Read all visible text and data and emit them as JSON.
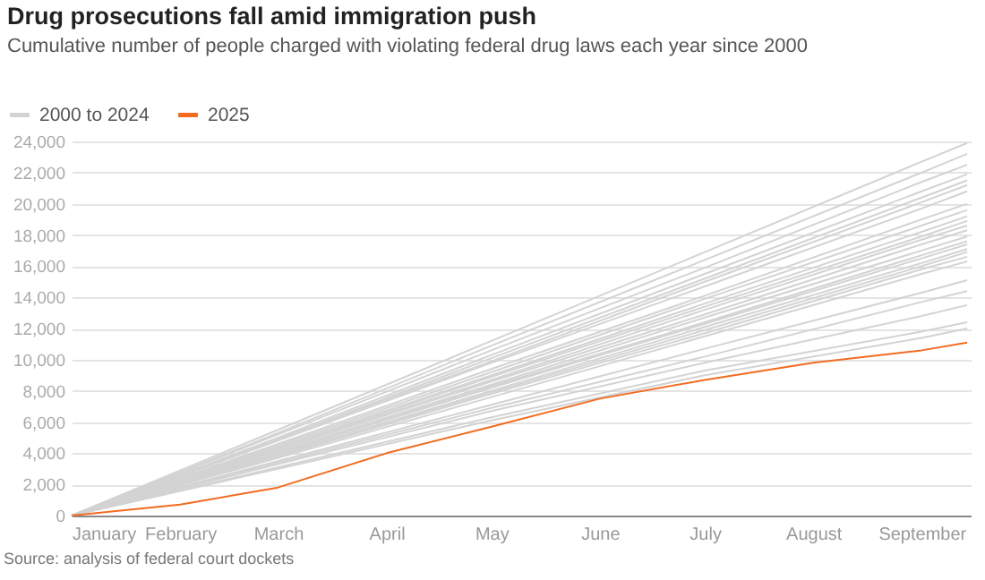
{
  "chart_data": {
    "type": "line",
    "title": "Drug prosecutions fall amid immigration push",
    "subtitle": "Cumulative number of people charged with violating federal drug laws each year since 2000",
    "annotations": [
      "Source: analysis of federal court dockets"
    ],
    "x": [
      "--01-01",
      "--03-01",
      "--05-01",
      "--07-01",
      "--09-01",
      "--09-14"
    ],
    "xlim": [
      "--01-01",
      "--09-15"
    ],
    "xticks": [
      {
        "value": "--01-01",
        "label": "January"
      },
      {
        "value": "--02-01",
        "label": "February"
      },
      {
        "value": "--03-01",
        "label": "March"
      },
      {
        "value": "--04-01",
        "label": "April"
      },
      {
        "value": "--05-01",
        "label": "May"
      },
      {
        "value": "--06-01",
        "label": "June"
      },
      {
        "value": "--07-01",
        "label": "July"
      },
      {
        "value": "--08-01",
        "label": "August"
      },
      {
        "value": "--09-01",
        "label": "September"
      }
    ],
    "ylim": [
      0,
      24000
    ],
    "yticks": [
      0,
      {
        "value": 2000,
        "label": "2,000"
      },
      {
        "value": 4000,
        "label": "4,000"
      },
      {
        "value": 6000,
        "label": "6,000"
      },
      {
        "value": 8000,
        "label": "8,000"
      },
      {
        "value": 10000,
        "label": "10,000"
      },
      {
        "value": 12000,
        "label": "12,000"
      },
      {
        "value": 14000,
        "label": "14,000"
      },
      {
        "value": 16000,
        "label": "16,000"
      },
      {
        "value": 18000,
        "label": "18,000"
      },
      {
        "value": 20000,
        "label": "20,000"
      },
      {
        "value": 22000,
        "label": "22,000"
      },
      {
        "value": 24000,
        "label": "24,000"
      }
    ],
    "grid": "y",
    "legend": "top left",
    "marker": "none",
    "line_style": "solid",
    "series": [
      {
        "name": "2000 to 2024",
        "color": "#d3d3d3",
        "values": [
          0,
          5500,
          11200,
          16900,
          22700,
          23900
        ]
      },
      {
        "color": "#d3d3d3",
        "values": [
          0,
          5300,
          10900,
          16400,
          22000,
          23200
        ]
      },
      {
        "color": "#d3d3d3",
        "values": [
          0,
          5200,
          10600,
          15900,
          21400,
          22500
        ]
      },
      {
        "color": "#d3d3d3",
        "values": [
          0,
          5000,
          10300,
          15500,
          20800,
          21900
        ]
      },
      {
        "color": "#d3d3d3",
        "values": [
          0,
          4900,
          10100,
          15200,
          20400,
          21500
        ]
      },
      {
        "color": "#d3d3d3",
        "values": [
          0,
          4900,
          9900,
          15000,
          20100,
          21200
        ]
      },
      {
        "color": "#d3d3d3",
        "values": [
          0,
          4800,
          9800,
          14700,
          19700,
          20800
        ]
      },
      {
        "color": "#d3d3d3",
        "values": [
          0,
          4600,
          9400,
          14100,
          19000,
          20000
        ]
      },
      {
        "color": "#d3d3d3",
        "values": [
          0,
          4500,
          9200,
          13900,
          18600,
          19600
        ]
      },
      {
        "color": "#d3d3d3",
        "values": [
          0,
          4400,
          9000,
          13600,
          18200,
          19200
        ]
      },
      {
        "color": "#d3d3d3",
        "values": [
          0,
          4300,
          8900,
          13400,
          17900,
          18900
        ]
      },
      {
        "color": "#d3d3d3",
        "values": [
          0,
          4300,
          8700,
          13200,
          17700,
          18600
        ]
      },
      {
        "color": "#d3d3d3",
        "values": [
          0,
          4200,
          8600,
          12900,
          17400,
          18300
        ]
      },
      {
        "color": "#d3d3d3",
        "values": [
          0,
          4100,
          8400,
          12700,
          17000,
          17900
        ]
      },
      {
        "color": "#d3d3d3",
        "values": [
          0,
          4000,
          8300,
          12400,
          16700,
          17600
        ]
      },
      {
        "color": "#d3d3d3",
        "values": [
          0,
          4000,
          8200,
          12300,
          16500,
          17400
        ]
      },
      {
        "color": "#d3d3d3",
        "values": [
          0,
          3900,
          8000,
          12100,
          16200,
          17100
        ]
      },
      {
        "color": "#d3d3d3",
        "values": [
          0,
          3900,
          7900,
          11900,
          16000,
          16900
        ]
      },
      {
        "color": "#d3d3d3",
        "values": [
          0,
          3800,
          7800,
          11700,
          15800,
          16600
        ]
      },
      {
        "color": "#d3d3d3",
        "values": [
          0,
          3700,
          7600,
          11500,
          15500,
          16300
        ]
      },
      {
        "color": "#d3d3d3",
        "values": [
          0,
          3500,
          7100,
          10700,
          14300,
          15100
        ]
      },
      {
        "color": "#d3d3d3",
        "values": [
          0,
          3400,
          6900,
          10200,
          13700,
          14400
        ]
      },
      {
        "color": "#d3d3d3",
        "values": [
          0,
          3300,
          6700,
          9800,
          12800,
          13500
        ]
      },
      {
        "color": "#d3d3d3",
        "values": [
          0,
          3100,
          6300,
          9300,
          11800,
          12400
        ]
      },
      {
        "color": "#d3d3d3",
        "values": [
          0,
          3000,
          6100,
          9000,
          11400,
          12000
        ]
      },
      {
        "name": "2025",
        "color": "#f26b21",
        "x": [
          "--01-01",
          "--02-01",
          "--03-01",
          "--04-01",
          "--05-01",
          "--06-01",
          "--07-01",
          "--08-01",
          "--09-01",
          "--09-14"
        ],
        "values": [
          0,
          700,
          1800,
          4000,
          5700,
          7500,
          8700,
          9800,
          10600,
          11100
        ]
      }
    ]
  }
}
